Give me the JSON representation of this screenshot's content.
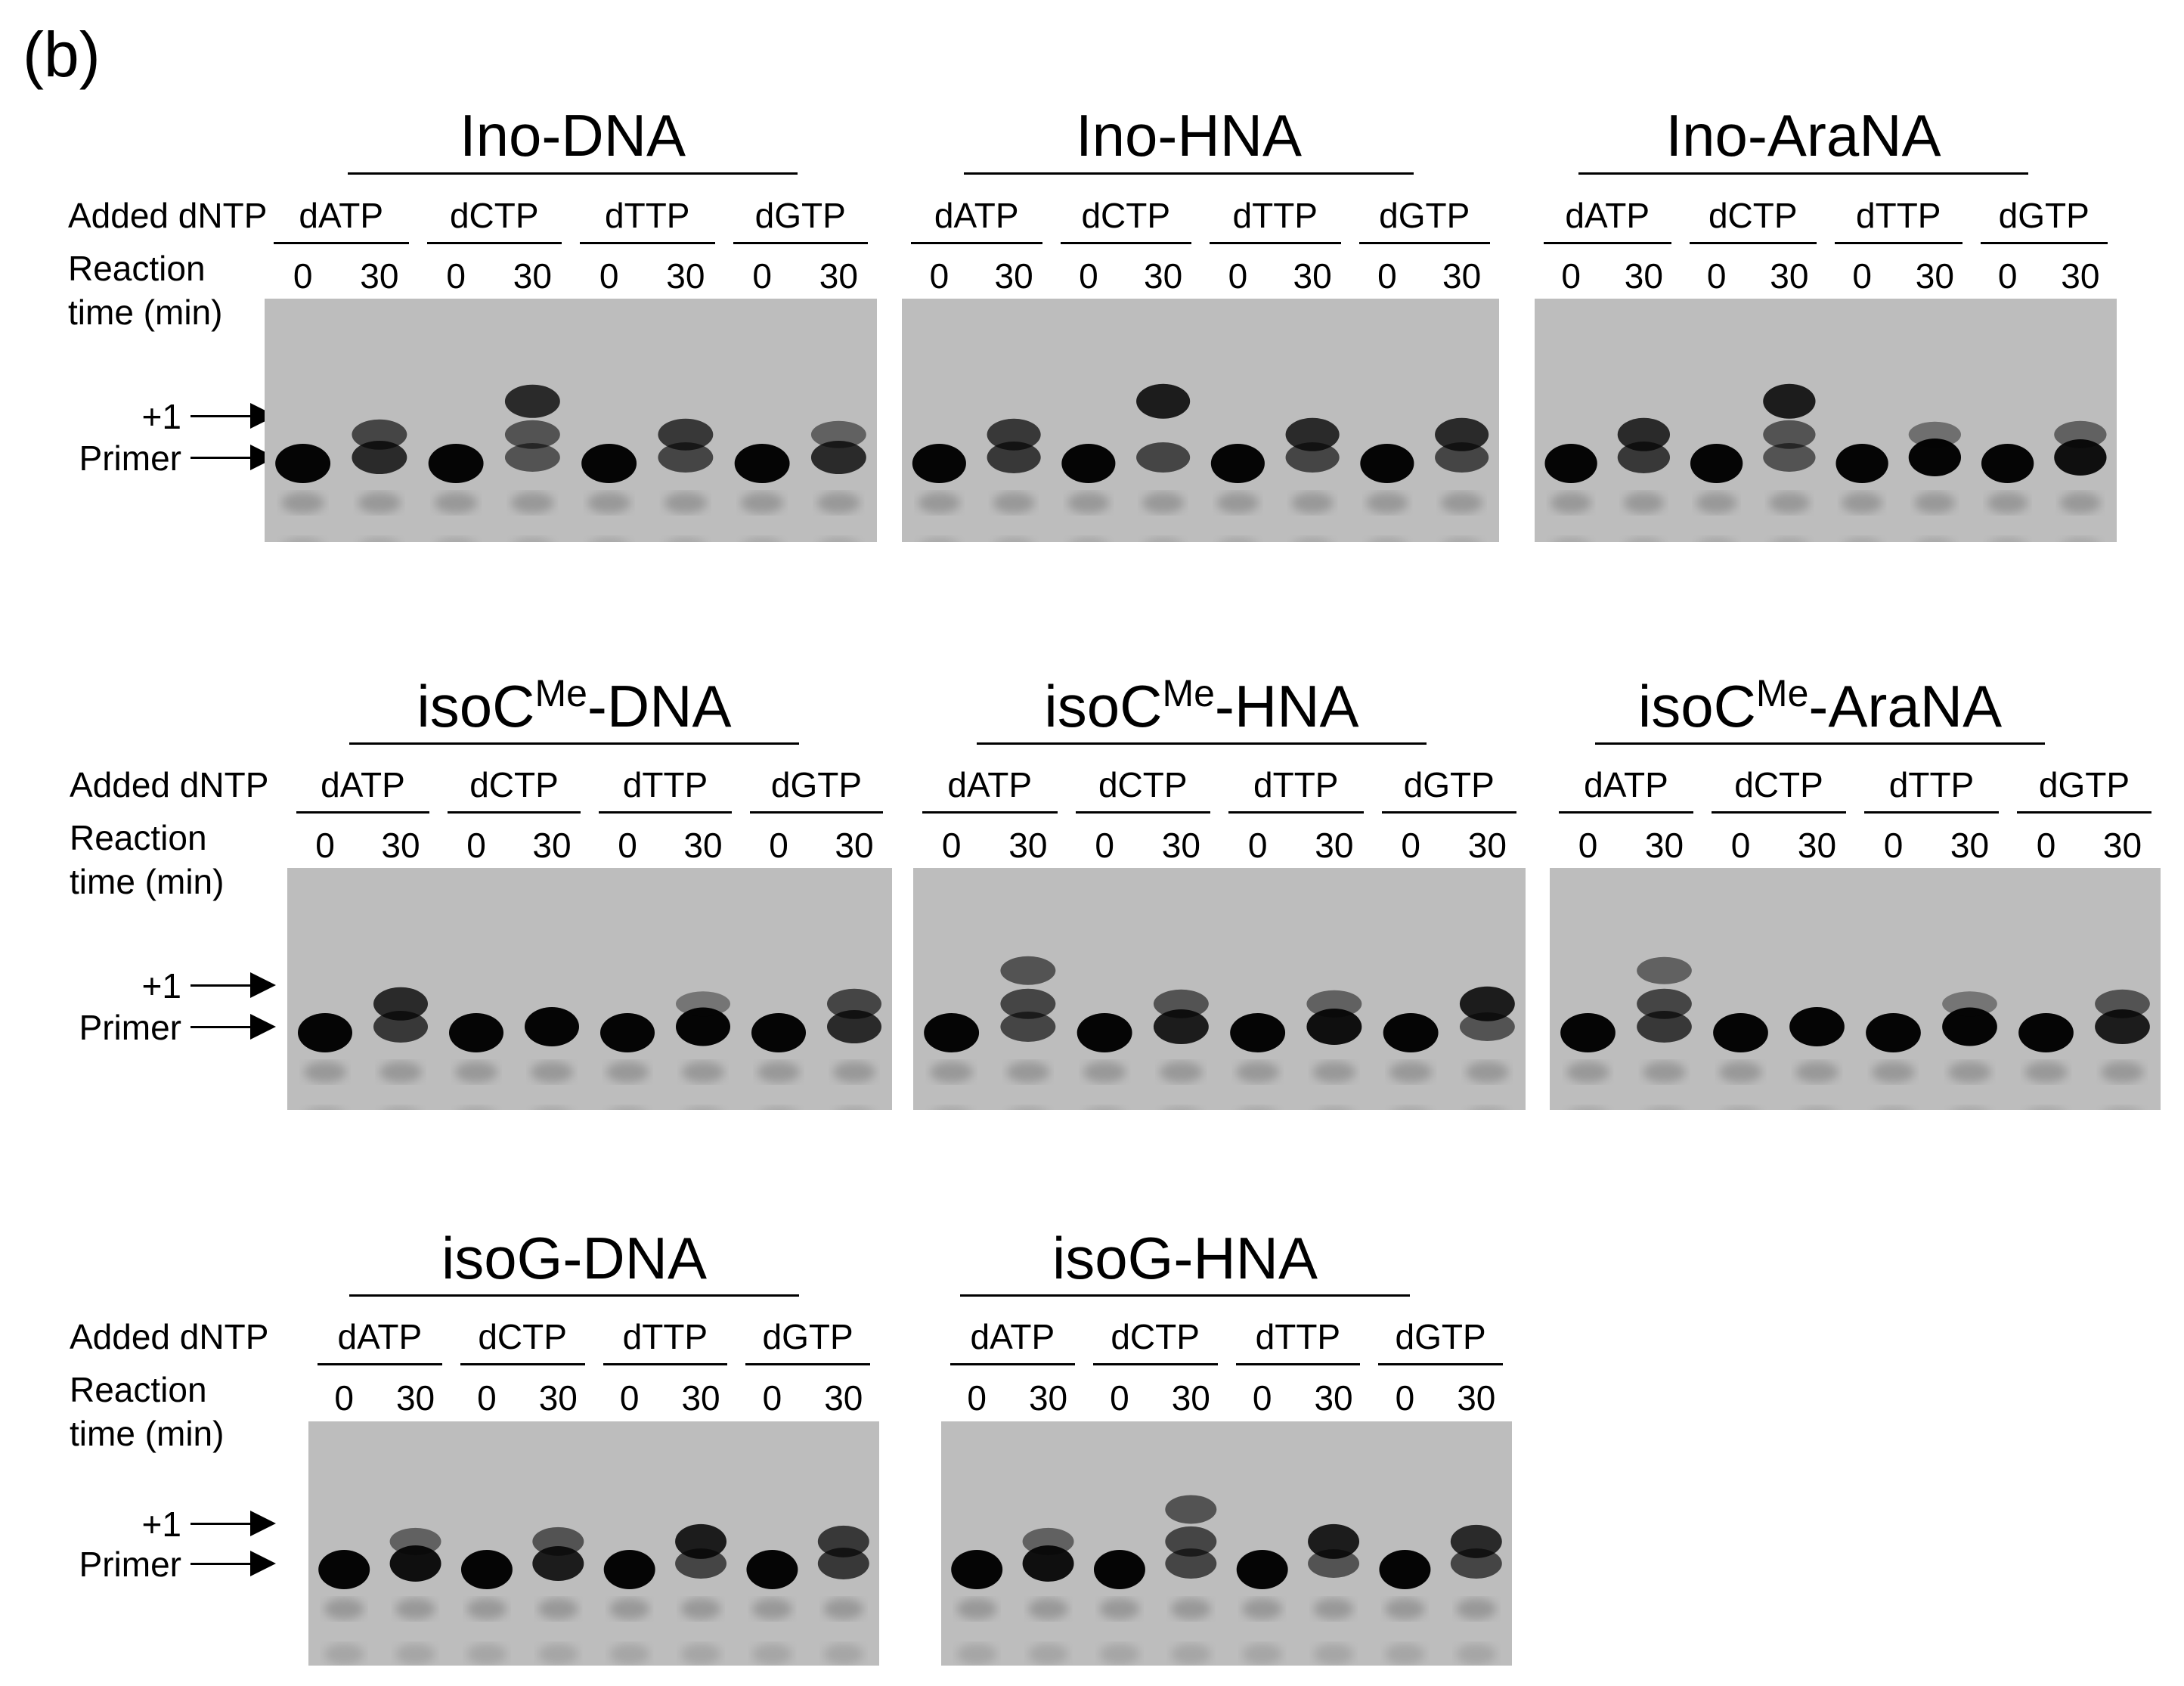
{
  "panel_label": "(b)",
  "row_labels": {
    "added_dntp": "Added dNTP",
    "reaction_time_1": "Reaction",
    "reaction_time_2": "time (min)"
  },
  "marker_labels": {
    "plus_one": "+1",
    "primer": "Primer"
  },
  "nucleotides": [
    "dATP",
    "dCTP",
    "dTTP",
    "dGTP"
  ],
  "times": [
    "0",
    "30"
  ],
  "gels": [
    {
      "title_main": "Ino-DNA",
      "title_sup": "",
      "title_rest": "",
      "lanes": [
        [
          0,
          0,
          0
        ],
        [
          0.6,
          0.4,
          0
        ],
        [
          0,
          0,
          0
        ],
        [
          0.3,
          0.3,
          0.6
        ],
        [
          0,
          0,
          0
        ],
        [
          0.4,
          0.5,
          0
        ],
        [
          0,
          0,
          0
        ],
        [
          0.6,
          0.2,
          0
        ]
      ]
    },
    {
      "title_main": "Ino-HNA",
      "title_sup": "",
      "title_rest": "",
      "lanes": [
        [
          0,
          0,
          0
        ],
        [
          0.5,
          0.5,
          0
        ],
        [
          0,
          0,
          0
        ],
        [
          0.4,
          0,
          0.7
        ],
        [
          0,
          0,
          0
        ],
        [
          0.4,
          0.6,
          0
        ],
        [
          0,
          0,
          0
        ],
        [
          0.4,
          0.6,
          0
        ]
      ]
    },
    {
      "title_main": "Ino-AraNA",
      "title_sup": "",
      "title_rest": "",
      "lanes": [
        [
          0,
          0,
          0
        ],
        [
          0.5,
          0.6,
          0
        ],
        [
          0,
          0,
          0
        ],
        [
          0.3,
          0.3,
          0.7
        ],
        [
          0,
          0,
          0
        ],
        [
          0.9,
          0.1,
          0
        ],
        [
          0,
          0,
          0
        ],
        [
          0.8,
          0.2,
          0
        ]
      ]
    },
    {
      "title_main": "isoC",
      "title_sup": "Me",
      "title_rest": "-DNA",
      "lanes": [
        [
          0,
          0,
          0
        ],
        [
          0.5,
          0.6,
          0
        ],
        [
          0,
          0,
          0
        ],
        [
          1,
          0,
          0
        ],
        [
          0,
          0,
          0
        ],
        [
          0.95,
          0.05,
          0
        ],
        [
          0,
          0,
          0
        ],
        [
          0.6,
          0.4,
          0
        ]
      ]
    },
    {
      "title_main": "isoC",
      "title_sup": "Me",
      "title_rest": "-HNA",
      "lanes": [
        [
          0,
          0,
          0
        ],
        [
          0.4,
          0.4,
          0.3
        ],
        [
          0,
          0,
          0
        ],
        [
          0.7,
          0.3,
          0
        ],
        [
          0,
          0,
          0
        ],
        [
          0.8,
          0.2,
          0
        ],
        [
          0,
          0,
          0
        ],
        [
          0.3,
          0.7,
          0
        ]
      ]
    },
    {
      "title_main": "isoC",
      "title_sup": "Me",
      "title_rest": "-AraNA",
      "lanes": [
        [
          0,
          0,
          0
        ],
        [
          0.5,
          0.4,
          0.2
        ],
        [
          0,
          0,
          0
        ],
        [
          1,
          0,
          0
        ],
        [
          0,
          0,
          0
        ],
        [
          0.95,
          0.05,
          0
        ],
        [
          0,
          0,
          0
        ],
        [
          0.7,
          0.3,
          0
        ]
      ]
    },
    {
      "title_main": "isoG-DNA",
      "title_sup": "",
      "title_rest": "",
      "lanes": [
        [
          0,
          0,
          0
        ],
        [
          0.8,
          0.2,
          0
        ],
        [
          0,
          0,
          0
        ],
        [
          0.7,
          0.3,
          0
        ],
        [
          0,
          0,
          0
        ],
        [
          0.4,
          0.7,
          0
        ],
        [
          0,
          0,
          0
        ],
        [
          0.5,
          0.5,
          0
        ]
      ]
    },
    {
      "title_main": "isoG-HNA",
      "title_sup": "",
      "title_rest": "",
      "lanes": [
        [
          0,
          0,
          0
        ],
        [
          0.8,
          0.2,
          0
        ],
        [
          0,
          0,
          0
        ],
        [
          0.4,
          0.4,
          0.3
        ],
        [
          0,
          0,
          0
        ],
        [
          0.3,
          0.7,
          0
        ],
        [
          0,
          0,
          0
        ],
        [
          0.4,
          0.6,
          0
        ]
      ]
    }
  ]
}
